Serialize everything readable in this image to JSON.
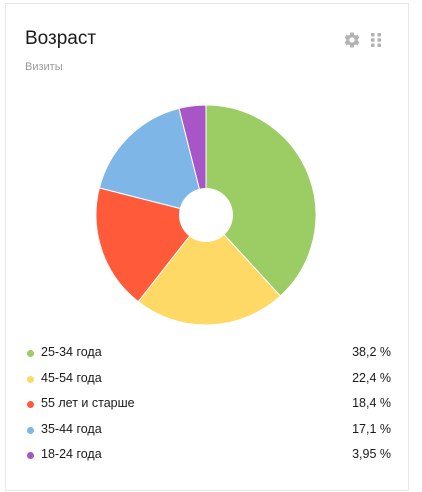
{
  "widget": {
    "title": "Возраст",
    "subtitle": "Визиты",
    "settings_icon": "gear-icon",
    "drag_icon": "drag-handle-icon"
  },
  "chart_data": {
    "type": "pie",
    "categories": [
      "25-34 года",
      "45-54 года",
      "55 лет и старше",
      "35-44 года",
      "18-24 года"
    ],
    "values": [
      38.2,
      22.4,
      18.4,
      17.1,
      3.95
    ],
    "value_labels": [
      "38,2 %",
      "22,4 %",
      "18,4 %",
      "17,1 %",
      "3,95 %"
    ],
    "colors": [
      "#9ccd65",
      "#ffd966",
      "#ff5b3b",
      "#7eb6e8",
      "#a855c7"
    ],
    "donut_hole": true,
    "legend_position": "bottom"
  }
}
